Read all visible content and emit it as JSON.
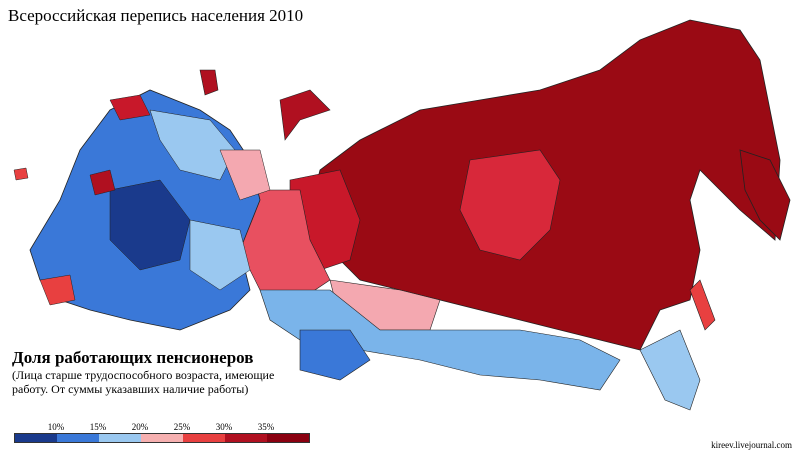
{
  "title": "Всероссийская перепись населения 2010",
  "legend": {
    "title": "Доля работающих пенсионеров",
    "description": "(Лица старше трудоспособного возраста, имеющие работу. От суммы указавших наличие работы)",
    "ticks": [
      "10%",
      "15%",
      "20%",
      "25%",
      "30%",
      "35%"
    ],
    "colors": [
      "#1a3a8c",
      "#3a78d8",
      "#9ac8f0",
      "#f6b0b0",
      "#e84040",
      "#b01020",
      "#8a0010"
    ]
  },
  "credit": "kireev.livejournal.com"
}
